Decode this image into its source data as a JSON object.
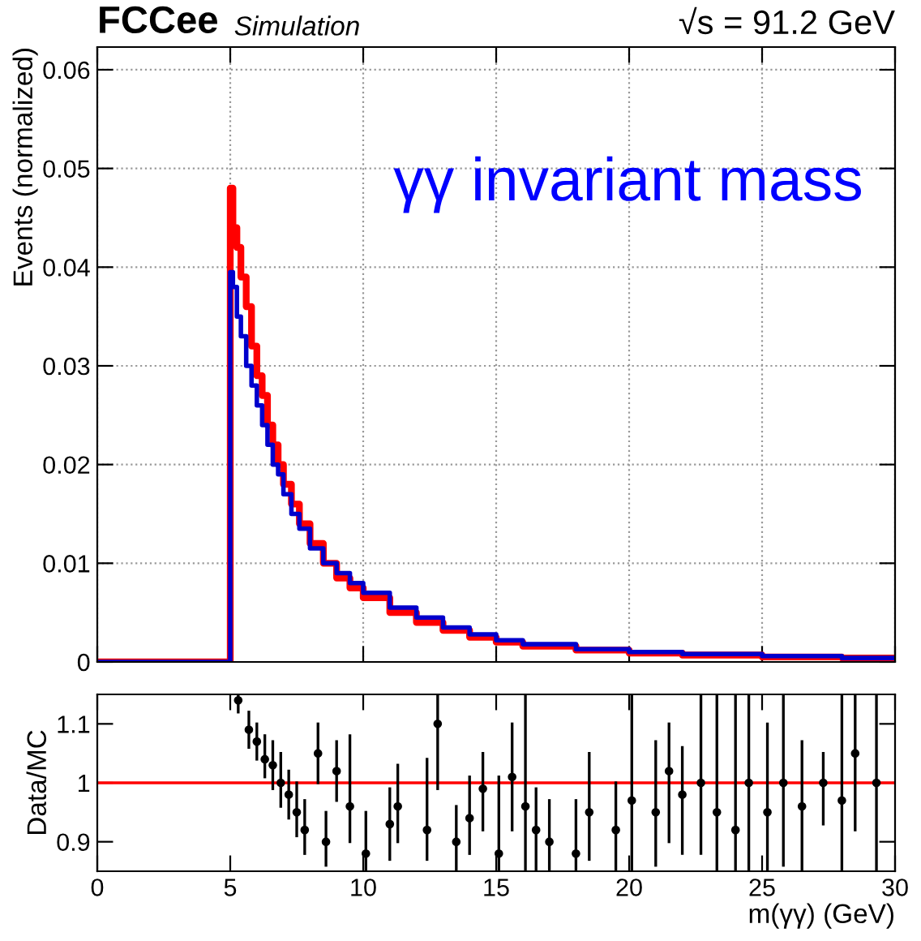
{
  "chart_data": [
    {
      "type": "step",
      "title": "FCCee",
      "subtitle": "Simulation",
      "ylabel": "Events (normalized)",
      "annotations": [
        "√s = 91.2 GeV",
        "γγ invariant mass"
      ],
      "xlim": [
        0,
        30
      ],
      "xticks": [
        0,
        5,
        10,
        15,
        20,
        25,
        30
      ],
      "ylim": [
        0,
        0.0623
      ],
      "yticks": [
        0,
        0.01,
        0.02,
        0.03,
        0.04,
        0.05,
        0.06
      ],
      "tick_labels": "y",
      "grid": true,
      "legend": false,
      "series": [
        {
          "color": "#ff0000",
          "x": [
            0,
            5,
            5.1,
            5.25,
            5.4,
            5.6,
            5.8,
            6.0,
            6.2,
            6.4,
            6.6,
            6.8,
            7.0,
            7.3,
            7.6,
            8.0,
            8.5,
            9,
            9.5,
            10,
            11,
            12,
            13,
            14,
            15,
            16,
            18,
            20,
            22,
            25,
            28,
            30
          ],
          "values": [
            0,
            0.048,
            0.044,
            0.042,
            0.039,
            0.036,
            0.032,
            0.029,
            0.027,
            0.024,
            0.022,
            0.02,
            0.018,
            0.016,
            0.014,
            0.012,
            0.01,
            0.0085,
            0.0075,
            0.0065,
            0.005,
            0.004,
            0.0032,
            0.0025,
            0.002,
            0.0016,
            0.0012,
            0.0009,
            0.0007,
            0.0005,
            0.0004,
            0.0004
          ]
        },
        {
          "color": "#0000cc",
          "x": [
            0,
            5,
            5.1,
            5.25,
            5.4,
            5.6,
            5.8,
            6.0,
            6.2,
            6.4,
            6.6,
            6.8,
            7.0,
            7.3,
            7.6,
            8.0,
            8.5,
            9,
            9.5,
            10,
            11,
            12,
            13,
            14,
            15,
            16,
            18,
            20,
            22,
            25,
            28,
            30
          ],
          "values": [
            0,
            0.0395,
            0.038,
            0.035,
            0.033,
            0.03,
            0.028,
            0.026,
            0.024,
            0.022,
            0.02,
            0.019,
            0.017,
            0.015,
            0.0135,
            0.0115,
            0.01,
            0.009,
            0.008,
            0.007,
            0.0055,
            0.0045,
            0.0035,
            0.0028,
            0.0022,
            0.0018,
            0.0013,
            0.001,
            0.0008,
            0.0006,
            0.0004,
            0.0004
          ]
        }
      ]
    },
    {
      "type": "scatter",
      "xlabel": "m(γγ) (GeV)",
      "ylabel": "Data/MC",
      "xlim": [
        0,
        30
      ],
      "xticks": [
        0,
        5,
        10,
        15,
        20,
        25,
        30
      ],
      "ylim": [
        0.85,
        1.15
      ],
      "yticks": [
        0.9,
        1,
        1.1
      ],
      "grid": false,
      "legend": false,
      "marker": "circle",
      "ref_lines": [
        {
          "axis": "y",
          "value": 1,
          "color": "#ff0000"
        }
      ],
      "series": [
        {
          "color": "#000000",
          "x": [
            5.3,
            5.7,
            6.0,
            6.3,
            6.6,
            6.9,
            7.2,
            7.5,
            7.8,
            8.3,
            8.6,
            9.0,
            9.5,
            10.1,
            11.0,
            11.3,
            12.4,
            12.8,
            13.5,
            14.0,
            14.5,
            15.1,
            15.6,
            16.1,
            16.5,
            17.0,
            18.0,
            18.5,
            19.5,
            20.1,
            21.0,
            21.5,
            22.0,
            22.7,
            23.3,
            24.0,
            24.5,
            25.2,
            25.8,
            26.5,
            27.3,
            28.0,
            28.5,
            29.3
          ],
          "values": [
            1.14,
            1.09,
            1.07,
            1.04,
            1.03,
            1.0,
            0.98,
            0.95,
            0.92,
            1.05,
            0.9,
            1.02,
            0.96,
            0.88,
            0.93,
            0.96,
            0.92,
            1.1,
            0.9,
            0.94,
            0.99,
            0.88,
            1.01,
            0.96,
            0.92,
            0.9,
            0.88,
            0.95,
            0.92,
            0.97,
            0.95,
            1.02,
            0.98,
            1.0,
            0.95,
            0.92,
            1.0,
            0.95,
            1.0,
            0.96,
            1.0,
            0.97,
            1.05,
            1.0
          ],
          "errors": [
            [
              1.12,
              1.15
            ],
            [
              1.06,
              1.12
            ],
            [
              1.04,
              1.1
            ],
            [
              1.01,
              1.08
            ],
            [
              0.99,
              1.07
            ],
            [
              0.96,
              1.05
            ],
            [
              0.94,
              1.02
            ],
            [
              0.91,
              1.0
            ],
            [
              0.88,
              0.97
            ],
            [
              1.0,
              1.1
            ],
            [
              0.86,
              0.95
            ],
            [
              0.97,
              1.07
            ],
            [
              0.9,
              1.08
            ],
            [
              0.85,
              0.95
            ],
            [
              0.87,
              0.99
            ],
            [
              0.9,
              1.03
            ],
            [
              0.87,
              1.04
            ],
            [
              0.99,
              1.15
            ],
            [
              0.85,
              0.96
            ],
            [
              0.88,
              1.01
            ],
            [
              0.92,
              1.05
            ],
            [
              0.85,
              1.01
            ],
            [
              0.92,
              1.1
            ],
            [
              0.85,
              1.15
            ],
            [
              0.85,
              0.99
            ],
            [
              0.85,
              0.97
            ],
            [
              0.85,
              0.97
            ],
            [
              0.87,
              1.05
            ],
            [
              0.85,
              1.0
            ],
            [
              0.85,
              1.15
            ],
            [
              0.86,
              1.07
            ],
            [
              0.9,
              1.1
            ],
            [
              0.88,
              1.06
            ],
            [
              0.88,
              1.15
            ],
            [
              0.85,
              1.15
            ],
            [
              0.85,
              1.15
            ],
            [
              0.85,
              1.15
            ],
            [
              0.85,
              1.1
            ],
            [
              0.86,
              1.15
            ],
            [
              0.85,
              1.07
            ],
            [
              0.93,
              1.05
            ],
            [
              0.85,
              1.15
            ],
            [
              0.92,
              1.15
            ],
            [
              0.85,
              1.15
            ]
          ]
        }
      ]
    }
  ]
}
